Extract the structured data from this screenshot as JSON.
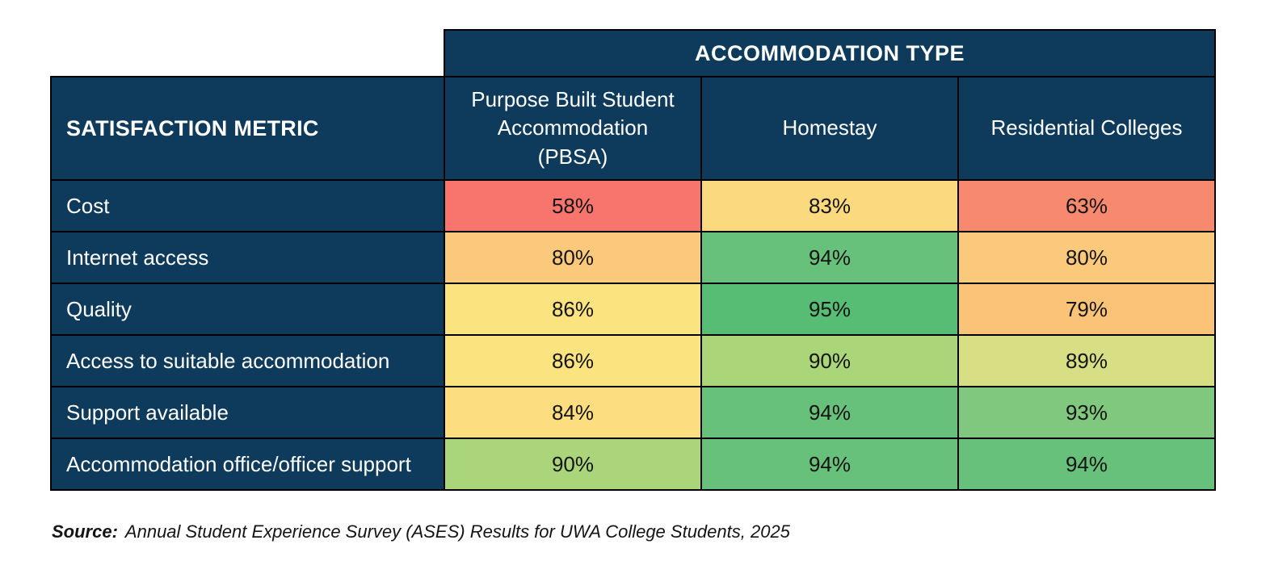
{
  "colors": {
    "header_bg": "#0e3a5b",
    "header_text": "#ffffff",
    "border": "#000000",
    "value_text": "#141414"
  },
  "table": {
    "group_header": "ACCOMMODATION TYPE",
    "corner_label": "SATISFACTION METRIC",
    "columns": [
      "Purpose Built Student Accommodation (PBSA)",
      "Homestay",
      "Residential Colleges"
    ],
    "rows": [
      {
        "metric": "Cost",
        "values": [
          "58%",
          "83%",
          "63%"
        ],
        "colors": [
          "#f7756c",
          "#fbd97e",
          "#f7896e"
        ]
      },
      {
        "metric": "Internet access",
        "values": [
          "80%",
          "94%",
          "80%"
        ],
        "colors": [
          "#fbc97c",
          "#68c17b",
          "#fbc97c"
        ]
      },
      {
        "metric": "Quality",
        "values": [
          "86%",
          "95%",
          "79%"
        ],
        "colors": [
          "#fbe380",
          "#57bd74",
          "#fac377"
        ]
      },
      {
        "metric": "Access to suitable accommodation",
        "values": [
          "86%",
          "90%",
          "89%"
        ],
        "colors": [
          "#fbe380",
          "#abd579",
          "#d8de84"
        ]
      },
      {
        "metric": "Support available",
        "values": [
          "84%",
          "94%",
          "93%"
        ],
        "colors": [
          "#fcdd80",
          "#68c17b",
          "#80c87e"
        ]
      },
      {
        "metric": "Accommodation office/officer support",
        "values": [
          "90%",
          "94%",
          "94%"
        ],
        "colors": [
          "#abd57a",
          "#68c17b",
          "#68c17b"
        ]
      }
    ]
  },
  "source": {
    "label": "Source:",
    "text": "Annual Student Experience Survey (ASES) Results for UWA College Students, 2025"
  },
  "chart_data": {
    "type": "table",
    "title": "ACCOMMODATION TYPE",
    "row_header": "SATISFACTION METRIC",
    "categories": [
      "Cost",
      "Internet access",
      "Quality",
      "Access to suitable accommodation",
      "Support available",
      "Accommodation office/officer support"
    ],
    "series": [
      {
        "name": "Purpose Built Student Accommodation (PBSA)",
        "values": [
          58,
          80,
          86,
          86,
          84,
          90
        ]
      },
      {
        "name": "Homestay",
        "values": [
          83,
          94,
          95,
          90,
          94,
          94
        ]
      },
      {
        "name": "Residential Colleges",
        "values": [
          63,
          80,
          79,
          89,
          93,
          94
        ]
      }
    ],
    "value_unit": "%",
    "color_scale": "red-yellow-green heatmap by value",
    "annotations": [
      "Source: Annual Student Experience Survey (ASES) Results for UWA College Students, 2025"
    ]
  }
}
